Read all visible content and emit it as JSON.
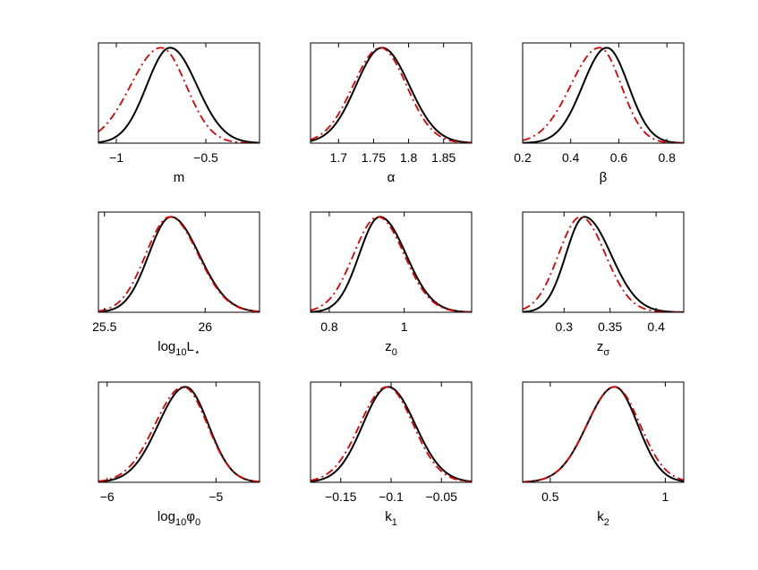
{
  "chart_data": [
    {
      "type": "line",
      "xlabel": "m",
      "xlim": [
        -1.1,
        -0.2
      ],
      "ylim": [
        0,
        1.05
      ],
      "xticks": [
        -1,
        -0.5
      ],
      "xticklabels": [
        "−1",
        "−0.5"
      ],
      "series": [
        {
          "style": "solid",
          "color": "#000000",
          "shape": "skew-gauss",
          "mu": -0.7,
          "sl": 0.13,
          "sr": 0.15
        },
        {
          "style": "dashdot",
          "color": "#dd0000",
          "shape": "skew-gauss",
          "mu": -0.75,
          "sl": 0.17,
          "sr": 0.14
        }
      ]
    },
    {
      "type": "line",
      "xlabel": "α",
      "xlim": [
        1.66,
        1.89
      ],
      "ylim": [
        0,
        1.05
      ],
      "xticks": [
        1.7,
        1.75,
        1.8,
        1.85
      ],
      "xticklabels": [
        "1.7",
        "1.75",
        "1.8",
        "1.85"
      ],
      "series": [
        {
          "style": "solid",
          "color": "#000000",
          "shape": "skew-gauss",
          "mu": 1.762,
          "sl": 0.037,
          "sr": 0.039
        },
        {
          "style": "dashdot",
          "color": "#dd0000",
          "shape": "skew-gauss",
          "mu": 1.76,
          "sl": 0.039,
          "sr": 0.037
        }
      ]
    },
    {
      "type": "line",
      "xlabel": "β",
      "xlim": [
        0.2,
        0.87
      ],
      "ylim": [
        0,
        1.05
      ],
      "xticks": [
        0.2,
        0.4,
        0.6,
        0.8
      ],
      "xticklabels": [
        "0.2",
        "0.4",
        "0.6",
        "0.8"
      ],
      "series": [
        {
          "style": "solid",
          "color": "#000000",
          "shape": "skew-gauss",
          "mu": 0.55,
          "sl": 0.1,
          "sr": 0.09
        },
        {
          "style": "dashdot",
          "color": "#dd0000",
          "shape": "skew-gauss",
          "mu": 0.52,
          "sl": 0.12,
          "sr": 0.09
        }
      ]
    },
    {
      "type": "line",
      "xlabel": "log<sub>10</sub>L<sub>⋆</sub>",
      "xlim": [
        25.47,
        26.27
      ],
      "ylim": [
        0,
        1.05
      ],
      "xticks": [
        25.5,
        26
      ],
      "xticklabels": [
        "25.5",
        "26"
      ],
      "series": [
        {
          "style": "solid",
          "color": "#000000",
          "shape": "skew-gauss",
          "mu": 25.83,
          "sl": 0.11,
          "sr": 0.14
        },
        {
          "style": "dashdot",
          "color": "#dd0000",
          "shape": "skew-gauss",
          "mu": 25.825,
          "sl": 0.12,
          "sr": 0.14
        }
      ]
    },
    {
      "type": "line",
      "xlabel": "z<sub>0</sub>",
      "xlim": [
        0.75,
        1.18
      ],
      "ylim": [
        0,
        1.05
      ],
      "xticks": [
        0.8,
        1
      ],
      "xticklabels": [
        "0.8",
        "1"
      ],
      "series": [
        {
          "style": "solid",
          "color": "#000000",
          "shape": "skew-gauss",
          "mu": 0.935,
          "sl": 0.055,
          "sr": 0.07
        },
        {
          "style": "dashdot",
          "color": "#dd0000",
          "shape": "skew-gauss",
          "mu": 0.93,
          "sl": 0.065,
          "sr": 0.07
        }
      ]
    },
    {
      "type": "line",
      "xlabel": "z<sub>σ</sub>",
      "xlim": [
        0.255,
        0.43
      ],
      "ylim": [
        0,
        1.05
      ],
      "xticks": [
        0.3,
        0.35,
        0.4
      ],
      "xticklabels": [
        "0.3",
        "0.35",
        "0.4"
      ],
      "series": [
        {
          "style": "solid",
          "color": "#000000",
          "shape": "skew-gauss",
          "mu": 0.322,
          "sl": 0.02,
          "sr": 0.029
        },
        {
          "style": "dashdot",
          "color": "#dd0000",
          "shape": "skew-gauss",
          "mu": 0.318,
          "sl": 0.024,
          "sr": 0.027
        }
      ]
    },
    {
      "type": "line",
      "xlabel": "log<sub>10</sub>φ<sub>0</sub>",
      "xlim": [
        -6.08,
        -4.6
      ],
      "ylim": [
        0,
        1.05
      ],
      "xticks": [
        -6,
        -5
      ],
      "xticklabels": [
        "−6",
        "−5"
      ],
      "series": [
        {
          "style": "solid",
          "color": "#000000",
          "shape": "skew-gauss",
          "mu": -5.28,
          "sl": 0.25,
          "sr": 0.21
        },
        {
          "style": "dashdot",
          "color": "#dd0000",
          "shape": "skew-gauss",
          "mu": -5.3,
          "sl": 0.26,
          "sr": 0.22
        }
      ]
    },
    {
      "type": "line",
      "xlabel": "k<sub>1</sub>",
      "xlim": [
        -0.18,
        -0.02
      ],
      "ylim": [
        0,
        1.05
      ],
      "xticks": [
        -0.15,
        -0.1,
        -0.05
      ],
      "xticklabels": [
        "−0.15",
        "−0.1",
        "−0.05"
      ],
      "series": [
        {
          "style": "solid",
          "color": "#000000",
          "shape": "skew-gauss",
          "mu": -0.103,
          "sl": 0.025,
          "sr": 0.027
        },
        {
          "style": "dashdot",
          "color": "#dd0000",
          "shape": "skew-gauss",
          "mu": -0.104,
          "sl": 0.027,
          "sr": 0.026
        }
      ]
    },
    {
      "type": "line",
      "xlabel": "k<sub>2</sub>",
      "xlim": [
        0.38,
        1.08
      ],
      "ylim": [
        0,
        1.05
      ],
      "xticks": [
        0.5,
        1
      ],
      "xticklabels": [
        "0.5",
        "1"
      ],
      "series": [
        {
          "style": "solid",
          "color": "#000000",
          "shape": "skew-gauss",
          "mu": 0.78,
          "sl": 0.12,
          "sr": 0.1
        },
        {
          "style": "dashdot",
          "color": "#dd0000",
          "shape": "skew-gauss",
          "mu": 0.78,
          "sl": 0.12,
          "sr": 0.11
        }
      ]
    }
  ]
}
